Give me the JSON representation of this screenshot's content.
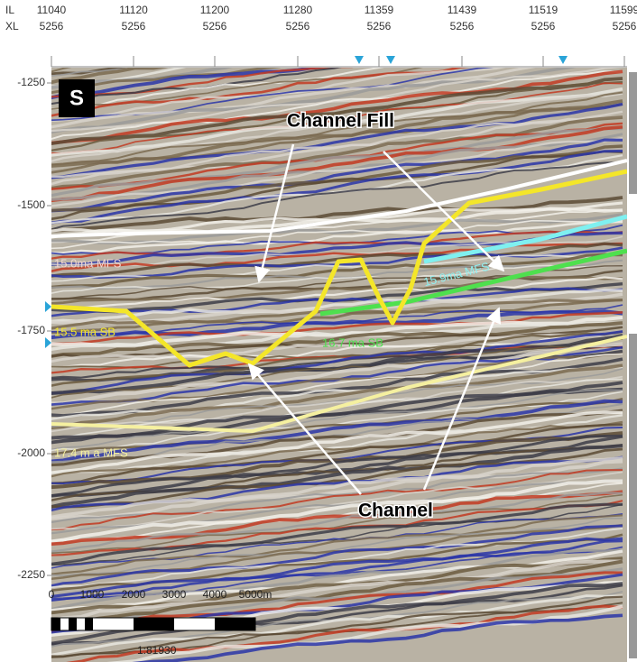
{
  "header": {
    "il_label": "IL",
    "xl_label": "XL",
    "inlines": [
      11040,
      11120,
      11200,
      11280,
      11359,
      11439,
      11519,
      11599
    ],
    "crosslines": [
      5256,
      5256,
      5256,
      5256,
      5256,
      5256,
      5256,
      5256
    ]
  },
  "depth_axis": {
    "ticks": [
      -1250,
      -1500,
      -1750,
      -2000,
      -2250
    ]
  },
  "panel_label": "S",
  "annotations": {
    "channel_fill": "Channel Fill",
    "channel": "Channel"
  },
  "horizons": [
    {
      "label": "15.0ma MFS"
    },
    {
      "label": "15.5 ma SB"
    },
    {
      "label": "16.7 ma SB"
    },
    {
      "label": "15.9ma MFS"
    },
    {
      "label": "17.4 m a MFS"
    }
  ],
  "scale_bar": {
    "labels": [
      "0",
      "1000",
      "2000",
      "3000",
      "4000",
      "5000m"
    ],
    "ratio": "1:81930"
  }
}
